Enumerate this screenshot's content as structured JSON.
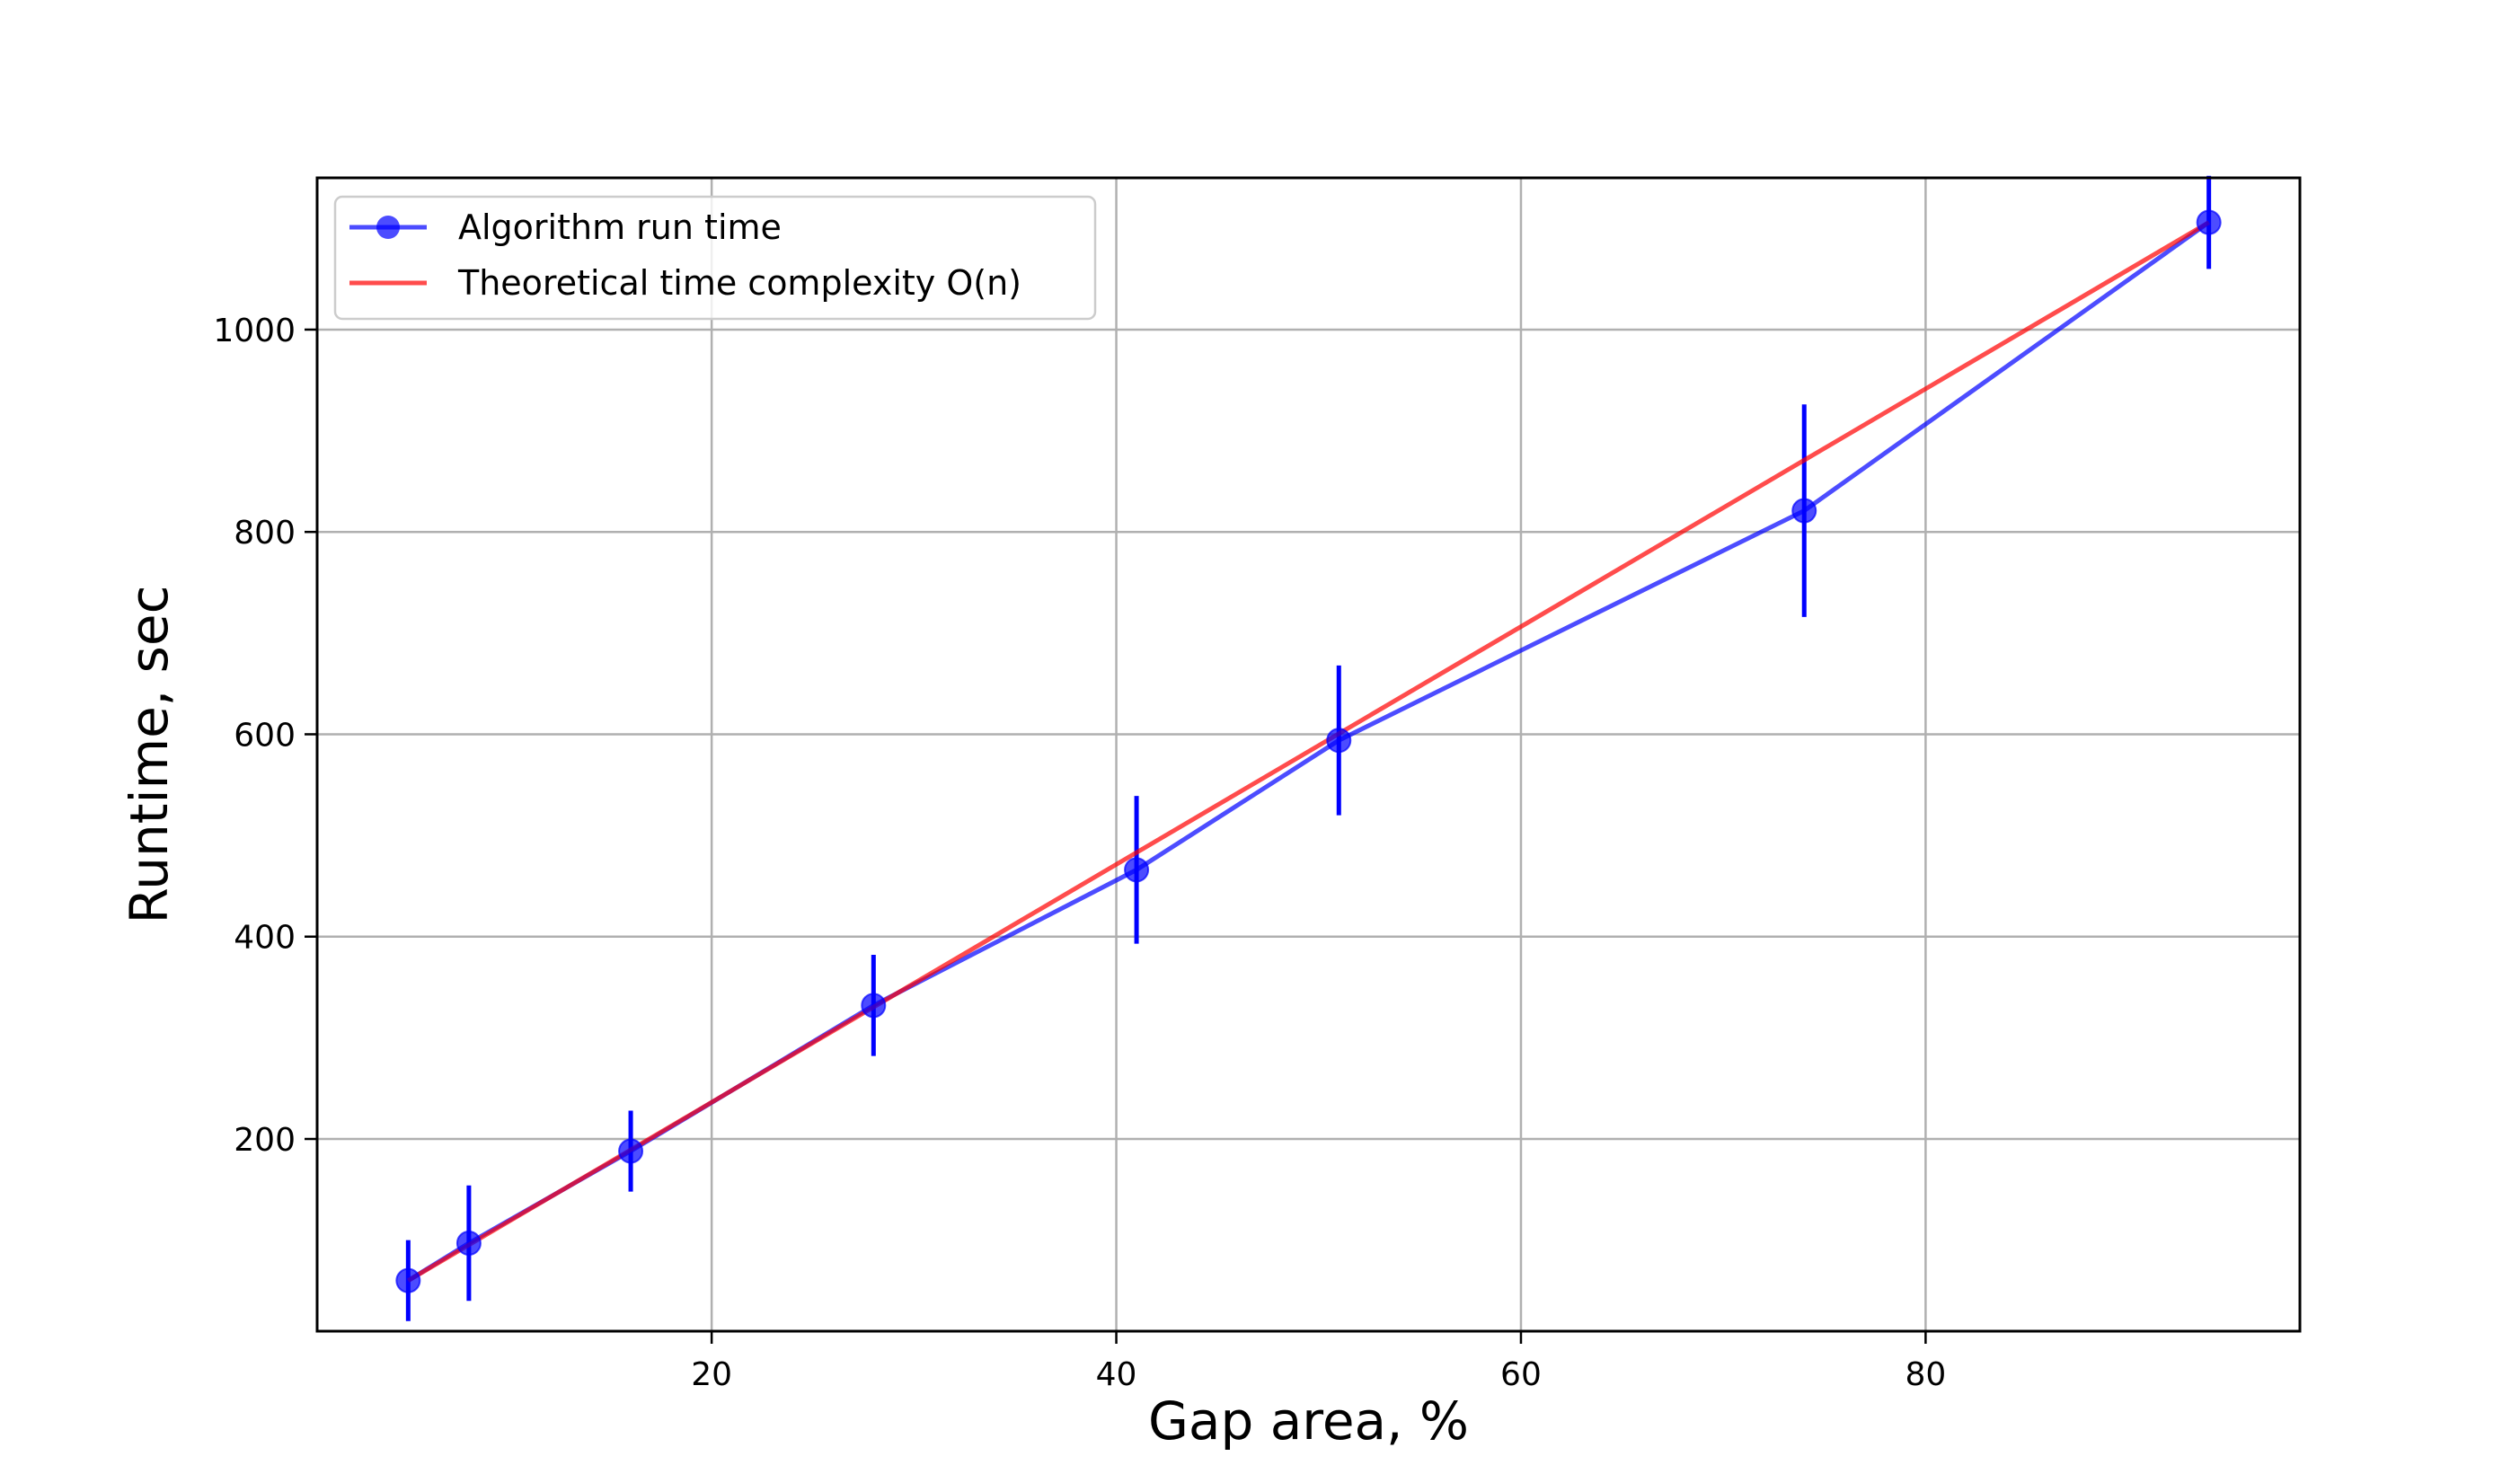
{
  "chart_data": {
    "type": "line",
    "xlabel": "Gap area, %",
    "ylabel": "Runtime, sec",
    "xlim": [
      0.5,
      98.5
    ],
    "ylim": [
      10,
      1150
    ],
    "xticks": [
      20,
      40,
      60,
      80
    ],
    "yticks": [
      200,
      400,
      600,
      800,
      1000
    ],
    "grid": true,
    "legend_position": "top-left",
    "series": [
      {
        "name": "Algorithm run time",
        "kind": "line-markers-errorbars",
        "color": "#0000ff",
        "x": [
          5,
          8,
          16,
          28,
          41,
          51,
          74,
          94
        ],
        "y": [
          60,
          97,
          188,
          332,
          466,
          594,
          821,
          1106
        ],
        "yerr": [
          40,
          57,
          40,
          50,
          73,
          74,
          105,
          46
        ]
      },
      {
        "name": "Theoretical time complexity O(n)",
        "kind": "line",
        "color": "#ff0000",
        "x": [
          5,
          94
        ],
        "y": [
          60,
          1106
        ]
      }
    ]
  }
}
